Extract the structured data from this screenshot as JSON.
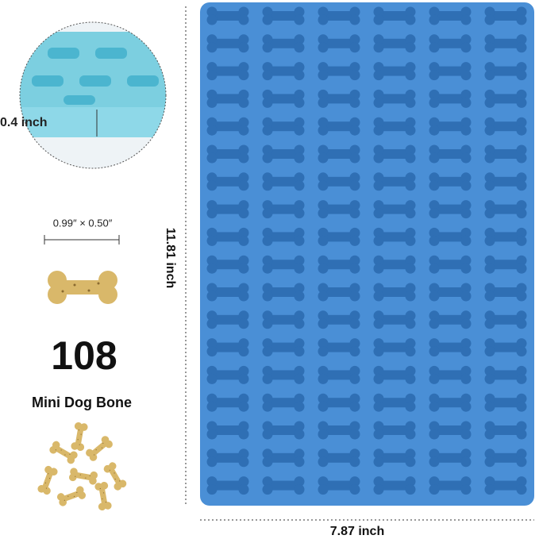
{
  "thickness_label": "0.4 inch",
  "bone_size_label": "0.99″ × 0.50″",
  "count": "108",
  "product_name": "Mini Dog Bone",
  "height_label": "11.81 inch",
  "width_label": "7.87 inch"
}
